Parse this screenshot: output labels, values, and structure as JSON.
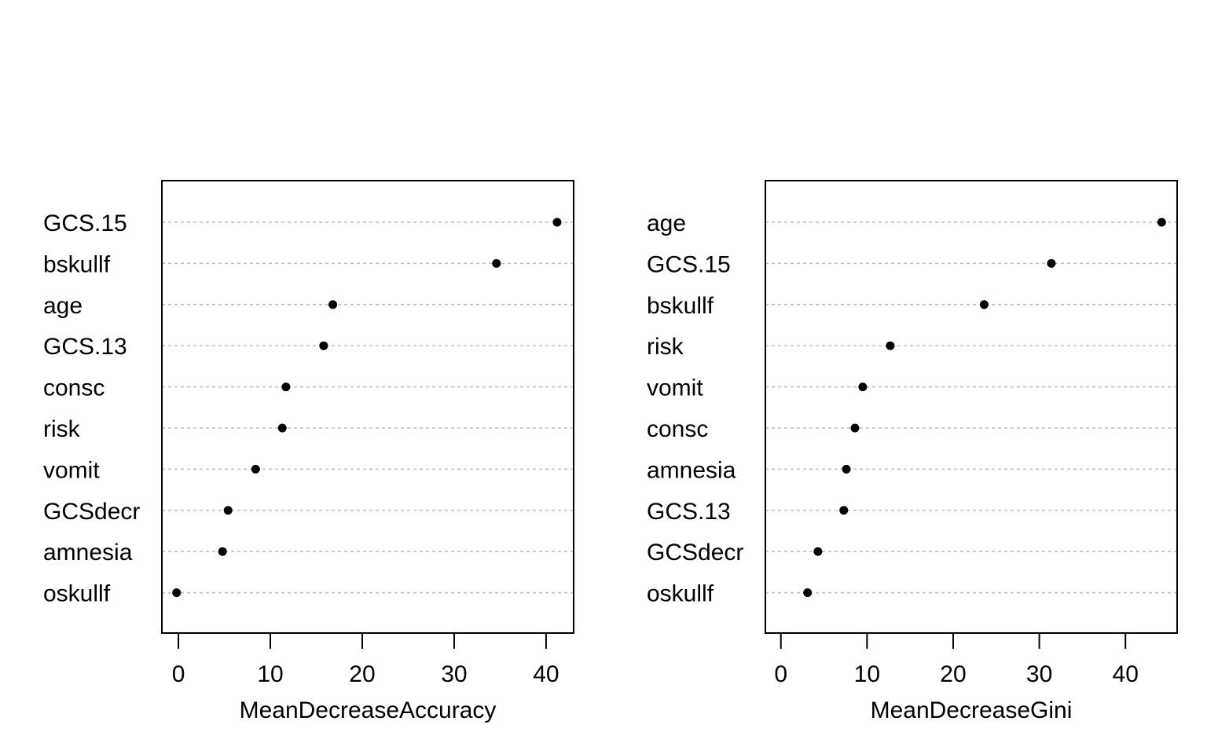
{
  "chart_data": [
    {
      "type": "scatter",
      "style": "dotchart",
      "xlabel": "MeanDecreaseAccuracy",
      "xlim": [
        -1.8,
        43
      ],
      "xticks": [
        0,
        10,
        20,
        30,
        40
      ],
      "grid": "dotted horizontal guide per category",
      "categories": [
        "GCS.15",
        "bskullf",
        "age",
        "GCS.13",
        "consc",
        "risk",
        "vomit",
        "GCSdecr",
        "amnesia",
        "oskullf"
      ],
      "values": [
        41.2,
        34.6,
        16.8,
        15.8,
        11.7,
        11.3,
        8.4,
        5.4,
        4.8,
        -0.2
      ]
    },
    {
      "type": "scatter",
      "style": "dotchart",
      "xlabel": "MeanDecreaseGini",
      "xlim": [
        -1.8,
        46
      ],
      "xticks": [
        0,
        10,
        20,
        30,
        40
      ],
      "grid": "dotted horizontal guide per category",
      "categories": [
        "age",
        "GCS.15",
        "bskullf",
        "risk",
        "vomit",
        "consc",
        "amnesia",
        "GCS.13",
        "GCSdecr",
        "oskullf"
      ],
      "values": [
        44.2,
        31.4,
        23.6,
        12.7,
        9.5,
        8.6,
        7.6,
        7.3,
        4.3,
        3.1
      ]
    }
  ]
}
